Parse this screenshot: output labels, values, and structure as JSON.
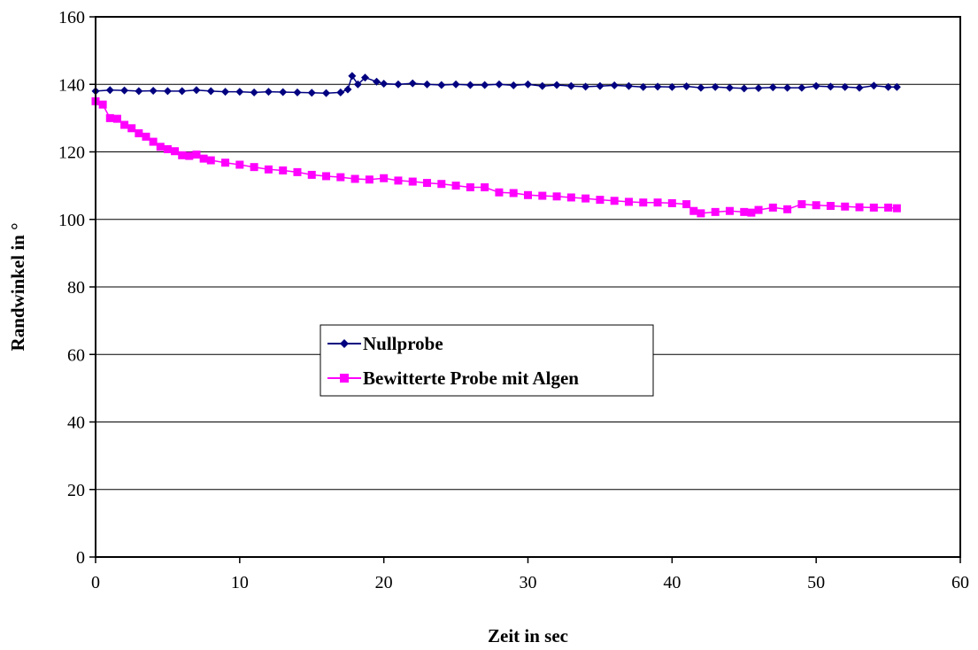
{
  "chart_data": {
    "type": "line",
    "title": "",
    "xlabel": "Zeit in sec",
    "ylabel": "Randwinkel in °",
    "xlim": [
      0,
      60
    ],
    "ylim": [
      0,
      160
    ],
    "xticks": [
      0,
      10,
      20,
      30,
      40,
      50,
      60
    ],
    "yticks": [
      0,
      20,
      40,
      60,
      80,
      100,
      120,
      140,
      160
    ],
    "grid": "horizontal",
    "legend_position": "center-left",
    "series": [
      {
        "name": "Nullprobe",
        "color": "#000080",
        "marker": "diamond",
        "points": [
          [
            0,
            138
          ],
          [
            1,
            138.3
          ],
          [
            2,
            138.2
          ],
          [
            3,
            138
          ],
          [
            4,
            138.1
          ],
          [
            5,
            138
          ],
          [
            6,
            138
          ],
          [
            7,
            138.3
          ],
          [
            8,
            138
          ],
          [
            9,
            137.8
          ],
          [
            10,
            137.8
          ],
          [
            11,
            137.6
          ],
          [
            12,
            137.8
          ],
          [
            13,
            137.7
          ],
          [
            14,
            137.6
          ],
          [
            15,
            137.5
          ],
          [
            16,
            137.4
          ],
          [
            17,
            137.6
          ],
          [
            17.5,
            138.5
          ],
          [
            17.8,
            142.5
          ],
          [
            18.2,
            140
          ],
          [
            18.7,
            142
          ],
          [
            19.5,
            140.8
          ],
          [
            20,
            140.2
          ],
          [
            21,
            140
          ],
          [
            22,
            140.3
          ],
          [
            23,
            140
          ],
          [
            24,
            139.8
          ],
          [
            25,
            140
          ],
          [
            26,
            139.8
          ],
          [
            27,
            139.8
          ],
          [
            28,
            140
          ],
          [
            29,
            139.7
          ],
          [
            30,
            140
          ],
          [
            31,
            139.5
          ],
          [
            32,
            139.8
          ],
          [
            33,
            139.5
          ],
          [
            34,
            139.3
          ],
          [
            35,
            139.5
          ],
          [
            36,
            139.7
          ],
          [
            37,
            139.5
          ],
          [
            38,
            139.2
          ],
          [
            39,
            139.3
          ],
          [
            40,
            139.2
          ],
          [
            41,
            139.4
          ],
          [
            42,
            139
          ],
          [
            43,
            139.2
          ],
          [
            44,
            139
          ],
          [
            45,
            138.8
          ],
          [
            46,
            138.9
          ],
          [
            47,
            139.1
          ],
          [
            48,
            139
          ],
          [
            49,
            139
          ],
          [
            50,
            139.5
          ],
          [
            51,
            139.3
          ],
          [
            52,
            139.2
          ],
          [
            53,
            139
          ],
          [
            54,
            139.6
          ],
          [
            55,
            139.2
          ],
          [
            55.6,
            139.2
          ]
        ]
      },
      {
        "name": "Bewitterte Probe mit Algen",
        "color": "#ff00ff",
        "marker": "square",
        "points": [
          [
            0,
            135
          ],
          [
            0.5,
            134
          ],
          [
            1,
            130
          ],
          [
            1.5,
            129.8
          ],
          [
            2,
            128
          ],
          [
            2.5,
            127
          ],
          [
            3,
            125.5
          ],
          [
            3.5,
            124.5
          ],
          [
            4,
            123
          ],
          [
            4.5,
            121.5
          ],
          [
            5,
            120.8
          ],
          [
            5.5,
            120.2
          ],
          [
            6,
            119
          ],
          [
            6.5,
            118.8
          ],
          [
            7,
            119.2
          ],
          [
            7.5,
            118
          ],
          [
            8,
            117.5
          ],
          [
            9,
            116.8
          ],
          [
            10,
            116.2
          ],
          [
            11,
            115.5
          ],
          [
            12,
            114.8
          ],
          [
            13,
            114.5
          ],
          [
            14,
            114
          ],
          [
            15,
            113.2
          ],
          [
            16,
            112.8
          ],
          [
            17,
            112.5
          ],
          [
            18,
            112
          ],
          [
            19,
            111.8
          ],
          [
            20,
            112.2
          ],
          [
            21,
            111.5
          ],
          [
            22,
            111.2
          ],
          [
            23,
            110.8
          ],
          [
            24,
            110.5
          ],
          [
            25,
            110
          ],
          [
            26,
            109.5
          ],
          [
            27,
            109.5
          ],
          [
            28,
            108
          ],
          [
            29,
            107.8
          ],
          [
            30,
            107.2
          ],
          [
            31,
            107
          ],
          [
            32,
            106.8
          ],
          [
            33,
            106.5
          ],
          [
            34,
            106.2
          ],
          [
            35,
            105.8
          ],
          [
            36,
            105.5
          ],
          [
            37,
            105.2
          ],
          [
            38,
            105
          ],
          [
            39,
            105
          ],
          [
            40,
            104.8
          ],
          [
            41,
            104.5
          ],
          [
            41.5,
            102.5
          ],
          [
            42,
            101.8
          ],
          [
            43,
            102.2
          ],
          [
            44,
            102.5
          ],
          [
            45,
            102.2
          ],
          [
            45.5,
            102
          ],
          [
            46,
            102.8
          ],
          [
            47,
            103.5
          ],
          [
            48,
            103
          ],
          [
            49,
            104.5
          ],
          [
            50,
            104.2
          ],
          [
            51,
            104
          ],
          [
            52,
            103.8
          ],
          [
            53,
            103.6
          ],
          [
            54,
            103.5
          ],
          [
            55,
            103.5
          ],
          [
            55.6,
            103.3
          ]
        ]
      }
    ]
  }
}
